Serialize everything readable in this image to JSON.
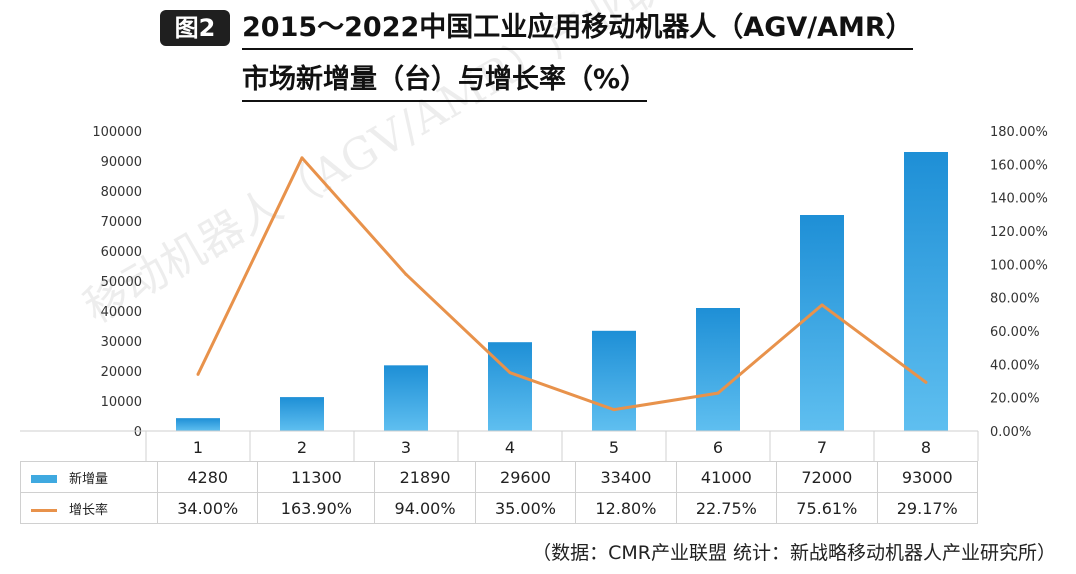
{
  "header": {
    "badge": "图2",
    "title_line1": "2015～2022中国工业应用移动机器人（AGV/AMR）",
    "title_line2": "市场新增量（台）与增长率（%）"
  },
  "watermark": "移动机器人（AGV/AMR）产业联",
  "source": "（数据：CMR产业联盟 统计：新战略移动机器人产业研究所）",
  "colors": {
    "bar_top": "#1e8fd6",
    "bar_bottom": "#5fbff0",
    "line": "#e8924b"
  },
  "chart_data": {
    "type": "bar",
    "categories": [
      "1",
      "2",
      "3",
      "4",
      "5",
      "6",
      "7",
      "8"
    ],
    "series": [
      {
        "name": "新增量",
        "type": "bar",
        "axis": "left",
        "values": [
          4280,
          11300,
          21890,
          29600,
          33400,
          41000,
          72000,
          93000
        ]
      },
      {
        "name": "增长率",
        "type": "line",
        "axis": "right",
        "values": [
          34.0,
          163.9,
          94.0,
          35.0,
          12.8,
          22.75,
          75.61,
          29.17
        ]
      }
    ],
    "table_row_bar": [
      "4280",
      "11300",
      "21890",
      "29600",
      "33400",
      "41000",
      "72000",
      "93000"
    ],
    "table_row_line": [
      "34.00%",
      "163.90%",
      "94.00%",
      "35.00%",
      "12.80%",
      "22.75%",
      "75.61%",
      "29.17%"
    ],
    "ylim_left": [
      0,
      100000
    ],
    "ylim_right": [
      0,
      180
    ],
    "yticks_left": [
      "0",
      "10000",
      "20000",
      "30000",
      "40000",
      "50000",
      "60000",
      "70000",
      "80000",
      "90000",
      "100000"
    ],
    "yticks_right": [
      "0.00%",
      "20.00%",
      "40.00%",
      "60.00%",
      "80.00%",
      "100.00%",
      "120.00%",
      "140.00%",
      "160.00%",
      "180.00%"
    ],
    "grid": false,
    "legend": "data-table"
  }
}
